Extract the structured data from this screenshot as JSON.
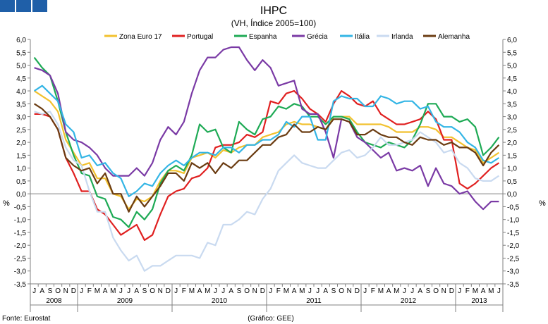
{
  "chart_data": {
    "type": "line",
    "title": "IHPC",
    "subtitle": "(VH, Índice 2005=100)",
    "ylabel_left": "%",
    "ylabel_right": "%",
    "ylim": [
      -3.5,
      6.0
    ],
    "ytick_step": 0.5,
    "grid": false,
    "legend_position": "top",
    "month_letters": [
      "J",
      "A",
      "S",
      "O",
      "N",
      "D",
      "J",
      "F",
      "M",
      "A",
      "M",
      "J",
      "J",
      "A",
      "S",
      "O",
      "N",
      "D",
      "J",
      "F",
      "M",
      "A",
      "M",
      "J",
      "J",
      "A",
      "S",
      "O",
      "N",
      "D",
      "J",
      "F",
      "M",
      "A",
      "M",
      "J",
      "J",
      "A",
      "S",
      "O",
      "N",
      "D",
      "J",
      "F",
      "M",
      "A",
      "M",
      "J",
      "J",
      "A",
      "S",
      "O",
      "N",
      "D",
      "J",
      "F",
      "M",
      "A",
      "M",
      "J"
    ],
    "years": [
      {
        "label": "2008",
        "start": 0,
        "end": 5
      },
      {
        "label": "2009",
        "start": 6,
        "end": 17
      },
      {
        "label": "2010",
        "start": 18,
        "end": 29
      },
      {
        "label": "2011",
        "start": 30,
        "end": 41
      },
      {
        "label": "2012",
        "start": 42,
        "end": 53
      },
      {
        "label": "2013",
        "start": 54,
        "end": 59
      }
    ],
    "series": [
      {
        "name": "Zona Euro 17",
        "color": "#f2c12e",
        "values": [
          4.0,
          3.8,
          3.6,
          3.2,
          2.1,
          1.6,
          1.1,
          1.2,
          0.6,
          0.6,
          0.0,
          -0.1,
          -0.6,
          -0.2,
          -0.3,
          -0.1,
          0.5,
          0.9,
          0.9,
          0.8,
          1.4,
          1.5,
          1.6,
          1.4,
          1.7,
          1.6,
          1.8,
          1.9,
          1.9,
          2.2,
          2.3,
          2.4,
          2.7,
          2.8,
          2.7,
          2.7,
          2.6,
          2.5,
          3.0,
          3.0,
          3.0,
          2.7,
          2.7,
          2.7,
          2.7,
          2.6,
          2.4,
          2.4,
          2.4,
          2.6,
          2.6,
          2.5,
          2.2,
          2.2,
          2.0,
          1.8,
          1.7,
          1.2,
          1.4,
          1.6
        ]
      },
      {
        "name": "Portugal",
        "color": "#e02020",
        "values": [
          3.1,
          3.1,
          3.0,
          2.5,
          1.4,
          0.8,
          0.1,
          0.1,
          -0.6,
          -0.8,
          -1.2,
          -1.6,
          -1.4,
          -1.2,
          -1.8,
          -1.6,
          -0.8,
          -0.1,
          0.1,
          0.2,
          0.6,
          0.7,
          1.0,
          1.8,
          1.9,
          1.9,
          2.0,
          2.3,
          2.2,
          2.4,
          3.6,
          3.5,
          3.9,
          4.0,
          3.7,
          3.3,
          3.1,
          2.8,
          3.5,
          4.0,
          3.8,
          3.5,
          3.4,
          3.6,
          3.1,
          2.9,
          2.7,
          2.7,
          2.8,
          2.9,
          3.2,
          2.9,
          2.1,
          2.1,
          0.4,
          0.2,
          0.4,
          0.7,
          1.0,
          1.2
        ]
      },
      {
        "name": "Espanha",
        "color": "#1eaa55",
        "values": [
          5.3,
          4.9,
          4.6,
          3.6,
          2.4,
          1.5,
          0.8,
          0.7,
          -0.1,
          -0.2,
          -0.9,
          -1.0,
          -1.3,
          -0.7,
          -1.0,
          -0.6,
          0.4,
          0.9,
          1.1,
          0.9,
          1.5,
          2.7,
          2.4,
          2.5,
          1.8,
          1.6,
          2.8,
          2.5,
          2.3,
          2.9,
          3.0,
          3.4,
          3.3,
          3.5,
          3.4,
          3.0,
          3.0,
          2.7,
          3.0,
          3.0,
          2.9,
          2.4,
          2.0,
          1.9,
          1.8,
          2.0,
          1.9,
          1.8,
          2.1,
          2.7,
          3.5,
          3.5,
          3.0,
          3.0,
          2.8,
          2.9,
          2.6,
          1.5,
          1.8,
          2.2
        ]
      },
      {
        "name": "Grécia",
        "color": "#7a3aa5",
        "values": [
          4.9,
          4.8,
          4.6,
          3.9,
          2.4,
          2.1,
          2.0,
          1.8,
          1.5,
          1.0,
          0.7,
          0.7,
          0.7,
          1.0,
          0.7,
          1.2,
          2.1,
          2.6,
          2.3,
          2.8,
          3.9,
          4.8,
          5.3,
          5.3,
          5.6,
          5.7,
          5.7,
          5.2,
          4.8,
          5.2,
          4.9,
          4.2,
          4.3,
          4.4,
          3.3,
          3.1,
          3.1,
          2.4,
          1.4,
          2.9,
          2.8,
          2.2,
          2.0,
          1.7,
          1.4,
          1.6,
          0.9,
          1.0,
          0.9,
          1.1,
          0.3,
          1.0,
          0.4,
          0.3,
          0.0,
          0.1,
          -0.3,
          -0.6,
          -0.3,
          -0.3
        ]
      },
      {
        "name": "Itália",
        "color": "#33b5e5",
        "values": [
          4.0,
          4.2,
          3.9,
          3.6,
          2.7,
          2.4,
          1.4,
          1.5,
          1.1,
          1.2,
          0.8,
          0.6,
          -0.1,
          0.1,
          0.4,
          0.3,
          0.8,
          1.1,
          1.3,
          1.1,
          1.4,
          1.6,
          1.6,
          1.5,
          1.8,
          1.8,
          1.6,
          1.9,
          1.9,
          2.1,
          2.1,
          2.3,
          2.8,
          2.6,
          3.0,
          3.0,
          2.1,
          2.1,
          3.6,
          3.8,
          3.7,
          3.7,
          3.4,
          3.4,
          3.8,
          3.7,
          3.5,
          3.6,
          3.6,
          3.3,
          3.4,
          2.8,
          2.6,
          2.6,
          2.4,
          2.0,
          1.8,
          1.3,
          1.2,
          1.4
        ]
      },
      {
        "name": "Irlanda",
        "color": "#c9daf0",
        "values": [
          3.2,
          3.1,
          3.2,
          2.7,
          1.8,
          1.3,
          1.1,
          0.1,
          -0.7,
          -0.7,
          -1.7,
          -2.2,
          -2.6,
          -2.4,
          -3.0,
          -2.8,
          -2.8,
          -2.6,
          -2.4,
          -2.4,
          -2.4,
          -2.5,
          -1.9,
          -2.0,
          -1.2,
          -1.2,
          -1.0,
          -0.7,
          -0.8,
          -0.2,
          0.2,
          0.9,
          1.2,
          1.5,
          1.2,
          1.1,
          1.0,
          1.0,
          1.3,
          1.6,
          1.7,
          1.4,
          1.5,
          1.8,
          2.2,
          1.9,
          1.9,
          2.0,
          2.1,
          2.4,
          2.2,
          2.0,
          1.6,
          1.7,
          1.2,
          1.0,
          0.6,
          0.5,
          0.5,
          0.7
        ]
      },
      {
        "name": "Alemanha",
        "color": "#6b3c12",
        "values": [
          3.5,
          3.3,
          3.0,
          2.5,
          1.4,
          1.1,
          0.9,
          1.0,
          0.4,
          0.8,
          0.0,
          0.0,
          -0.7,
          -0.1,
          -0.5,
          -0.1,
          0.3,
          0.8,
          0.8,
          0.5,
          1.2,
          1.0,
          1.2,
          0.8,
          1.2,
          1.0,
          1.3,
          1.3,
          1.6,
          1.9,
          1.9,
          2.2,
          2.3,
          2.7,
          2.4,
          2.4,
          2.6,
          2.5,
          2.9,
          2.9,
          2.8,
          2.3,
          2.3,
          2.5,
          2.3,
          2.2,
          2.2,
          2.0,
          1.9,
          2.2,
          2.1,
          2.1,
          1.9,
          2.0,
          1.8,
          1.8,
          1.6,
          1.1,
          1.6,
          1.9
        ]
      }
    ]
  },
  "footer": {
    "source": "Fonte: Eurostat",
    "credit": "(Gráfico: GEE)"
  }
}
